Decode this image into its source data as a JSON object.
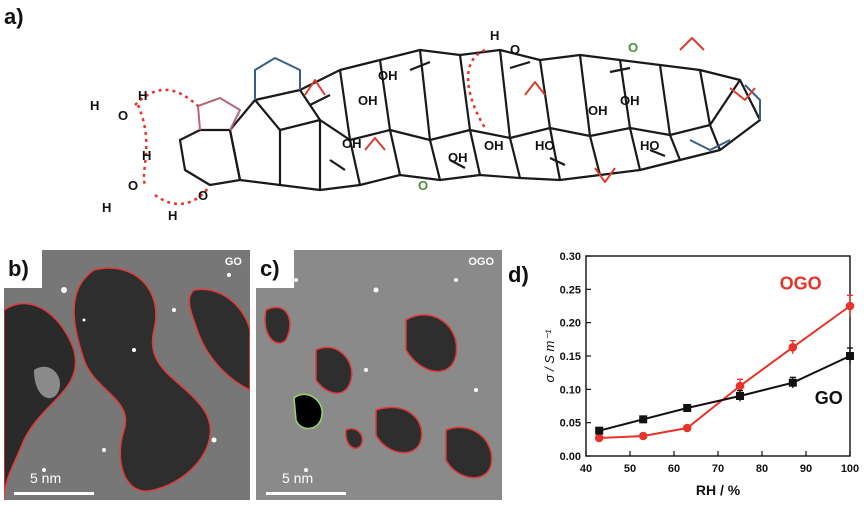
{
  "panels": {
    "a": "a)",
    "b": "b)",
    "c": "c)",
    "d": "d)"
  },
  "molecule": {
    "labels": {
      "h": "H",
      "o": "O",
      "oh": "OH",
      "ho": "HO",
      "carbonyl_o": "O"
    }
  },
  "micrographs": {
    "b": {
      "tag": "GO",
      "scale_label": "5 nm"
    },
    "c": {
      "tag": "OGO",
      "scale_label": "5 nm"
    }
  },
  "colors": {
    "ogo_series": "#e8332a",
    "go_series": "#111111",
    "lactone": "#b5687a",
    "epoxide": "#d8402e",
    "carboxyl": "#3a5d8a",
    "carbonyl": "#4e8f3a"
  },
  "chart_data": {
    "type": "line",
    "xlabel": "RH / %",
    "ylabel": "σ / S m⁻¹",
    "xlim": [
      40,
      100
    ],
    "ylim": [
      0,
      0.3
    ],
    "xticks": [
      40,
      50,
      60,
      70,
      80,
      90,
      100
    ],
    "yticks": [
      0.0,
      0.05,
      0.1,
      0.15,
      0.2,
      0.25,
      0.3
    ],
    "grid": false,
    "series": [
      {
        "name": "OGO",
        "color": "#e8332a",
        "x": [
          43,
          53,
          63,
          75,
          87,
          100
        ],
        "y": [
          0.027,
          0.03,
          0.042,
          0.105,
          0.163,
          0.225
        ],
        "err": [
          0.003,
          0.003,
          0.003,
          0.01,
          0.01,
          0.016
        ]
      },
      {
        "name": "GO",
        "color": "#111111",
        "x": [
          43,
          53,
          63,
          75,
          87,
          100
        ],
        "y": [
          0.038,
          0.055,
          0.072,
          0.09,
          0.11,
          0.15
        ],
        "err": [
          0.003,
          0.003,
          0.003,
          0.008,
          0.008,
          0.012
        ]
      }
    ]
  }
}
